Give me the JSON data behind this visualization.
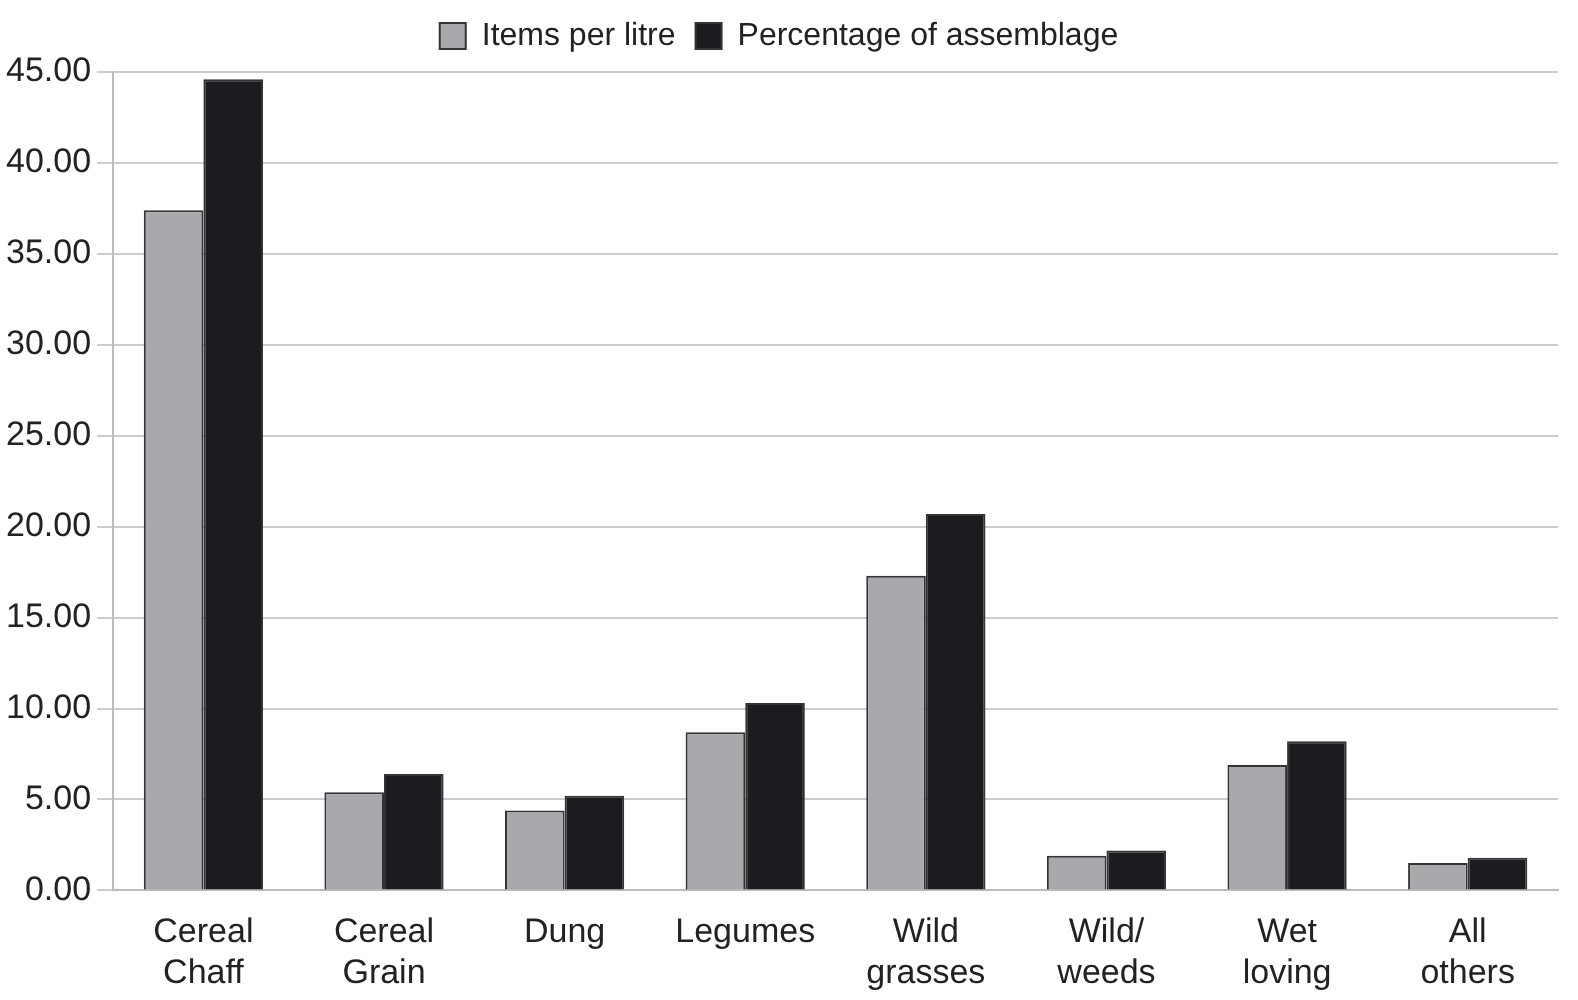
{
  "chart_data": {
    "type": "bar",
    "categories": [
      "Cereal Chaff",
      "Cereal Grain",
      "Dung",
      "Legumes",
      "Wild grasses",
      "Wild/ weeds",
      "Wet loving",
      "All others"
    ],
    "series": [
      {
        "name": "Items per litre",
        "color": "#a9a9ad",
        "values": [
          37.4,
          5.4,
          4.4,
          8.7,
          17.3,
          1.9,
          6.9,
          1.5
        ]
      },
      {
        "name": "Percentage of assemblage",
        "color": "#1c1c20",
        "values": [
          44.6,
          6.4,
          5.2,
          10.3,
          20.7,
          2.2,
          8.2,
          1.8
        ]
      }
    ],
    "ylim": [
      0,
      45
    ],
    "yticks": [
      {
        "value": 0,
        "label": "0.00"
      },
      {
        "value": 5,
        "label": "5.00"
      },
      {
        "value": 10,
        "label": "10.00"
      },
      {
        "value": 15,
        "label": "15.00"
      },
      {
        "value": 20,
        "label": "20.00"
      },
      {
        "value": 25,
        "label": "25.00"
      },
      {
        "value": 30,
        "label": "30.00"
      },
      {
        "value": 35,
        "label": "35.00"
      },
      {
        "value": 40,
        "label": "40.00"
      },
      {
        "value": 45,
        "label": "45.00"
      }
    ],
    "grid": "y",
    "legend": "top"
  }
}
